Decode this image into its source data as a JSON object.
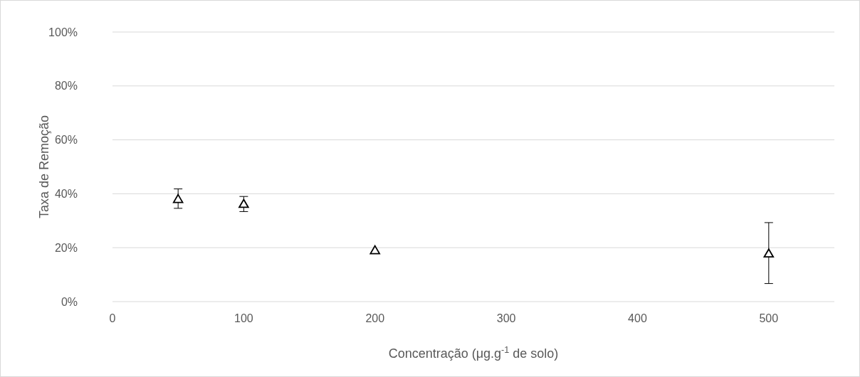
{
  "chart_data": {
    "type": "scatter",
    "xlabel": "Concentração (μg.g$^{-1}$ de solo)",
    "ylabel": "Taxa de Remoção",
    "x": [
      50,
      100,
      200,
      500
    ],
    "series": [
      {
        "color": "#000000",
        "values": [
          38.0,
          36.2,
          19.0,
          17.8
        ],
        "errors": [
          [
            34.6,
            41.8
          ],
          [
            33.4,
            39.0
          ],
          null,
          [
            6.7,
            29.3
          ]
        ]
      }
    ],
    "xlim": [
      0,
      550
    ],
    "xticks": [
      0,
      100,
      200,
      300,
      400,
      500
    ],
    "ylim": [
      0,
      100
    ],
    "yticks": [
      {
        "value": 0,
        "label": "0%"
      },
      {
        "value": 20,
        "label": "20%"
      },
      {
        "value": 40,
        "label": "40%"
      },
      {
        "value": 60,
        "label": "60%"
      },
      {
        "value": 80,
        "label": "80%"
      },
      {
        "value": 100,
        "label": "100%"
      }
    ],
    "grid": "y",
    "marker": "triangle"
  }
}
